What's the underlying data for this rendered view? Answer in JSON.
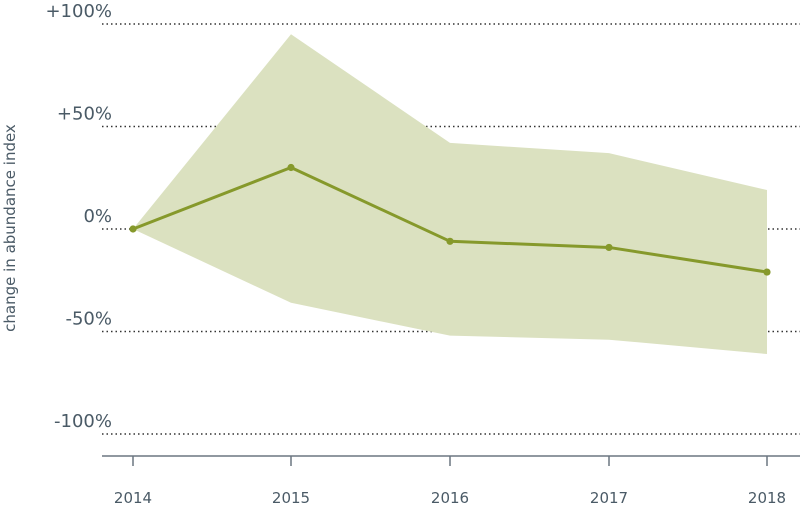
{
  "chart_data": {
    "type": "line",
    "title": "",
    "xlabel": "",
    "ylabel": "change in abundance index",
    "x": [
      "2014",
      "2015",
      "2016",
      "2017",
      "2018"
    ],
    "series": [
      {
        "values": [
          0,
          30,
          -6,
          -9,
          -21
        ],
        "lower": [
          0,
          -36,
          -52,
          -54,
          -61
        ],
        "upper": [
          0,
          95,
          42,
          37,
          19
        ]
      }
    ],
    "yticks": [
      100,
      50,
      0,
      -50,
      -100
    ],
    "ytick_labels": [
      "+100%",
      "+50%",
      "0%",
      "-50%",
      "-100%"
    ],
    "ylim": [
      -100,
      100
    ],
    "grid": "horizontal dotted",
    "colors": {
      "line": "#86992b",
      "band": "#dbe1c0",
      "grid": "#333333",
      "axis": "#6b7680",
      "text": "#4a5a66"
    }
  }
}
